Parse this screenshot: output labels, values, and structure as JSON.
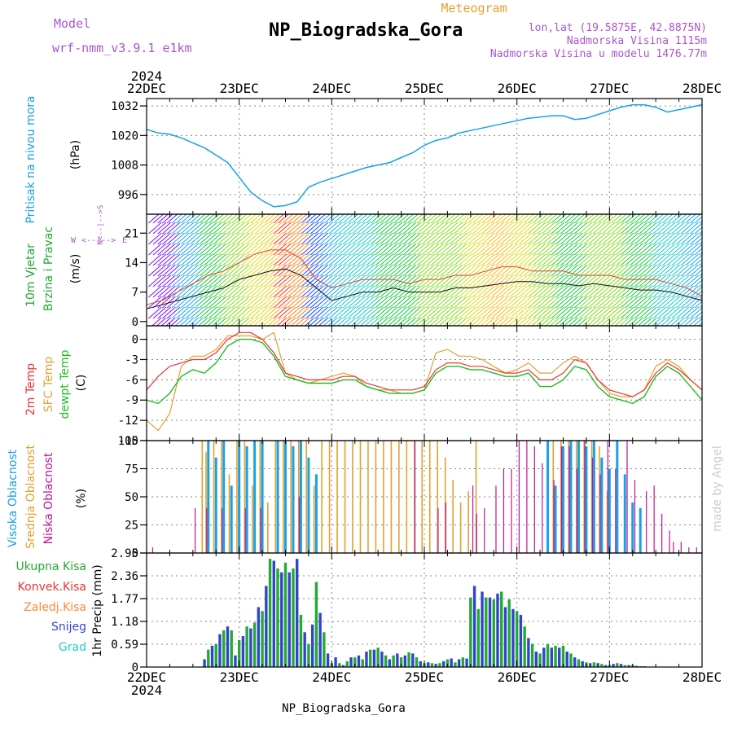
{
  "header": {
    "model_label": "Model",
    "model_name": "wrf-nmm_v3.9.1 e1km",
    "subtitle": "Meteogram",
    "title": "NP_Biogradska_Gora",
    "lonlat": "lon,lat (19.5875E, 42.8875N)",
    "elevation": "Nadmorska Visina 1115m",
    "model_elevation": "Nadmorska Visina u modelu 1476.77m",
    "watermark": "made by Angel",
    "footer": "NP_Biogradska_Gora"
  },
  "time_axis": {
    "year": "2024",
    "ticks": [
      "22DEC",
      "23DEC",
      "24DEC",
      "25DEC",
      "26DEC",
      "27DEC",
      "28DEC"
    ],
    "range_hours": [
      0,
      144
    ]
  },
  "colors": {
    "pressure": "#1ba0e6",
    "temp2m": "#ee3333",
    "sfc_temp": "#e3a12f",
    "dewpoint": "#22bb22",
    "high_cloud": "#1ba0e6",
    "mid_cloud": "#e3a12f",
    "low_cloud": "#c0139a",
    "total_precip": "#22aa33",
    "convective_precip": "#ee3333",
    "freezing_precip": "#ff8833",
    "snow": "#3344cc",
    "graupel": "#22cccc",
    "axis_label_purple": "#aa55cc"
  },
  "chart_data": [
    {
      "type": "line",
      "name": "pressure",
      "ylabel": "Pritisak na nivou mora",
      "unit": "(hPa)",
      "yticks": [
        "1032",
        "1020",
        "1008",
        "996"
      ],
      "ylim": [
        988,
        1035
      ],
      "x": [
        0,
        3,
        6,
        9,
        12,
        15,
        18,
        21,
        24,
        27,
        30,
        33,
        36,
        39,
        42,
        45,
        48,
        51,
        54,
        57,
        60,
        63,
        66,
        69,
        72,
        75,
        78,
        81,
        84,
        87,
        90,
        93,
        96,
        99,
        102,
        105,
        108,
        111,
        114,
        117,
        120,
        123,
        126,
        129,
        132,
        135,
        138,
        141,
        144
      ],
      "series": [
        {
          "values": [
            1022.5,
            1021,
            1020.5,
            1019,
            1017,
            1015,
            1012,
            1009,
            1003,
            997,
            993.5,
            991,
            991.5,
            993,
            999,
            1001,
            1002.5,
            1004,
            1005.5,
            1007,
            1008,
            1009,
            1011,
            1013,
            1016,
            1018,
            1019,
            1021,
            1022,
            1023,
            1024,
            1025,
            1026,
            1027,
            1027.5,
            1028,
            1028,
            1026.5,
            1027,
            1028.5,
            1030,
            1031.5,
            1032.5,
            1032.5,
            1031.5,
            1029.5,
            1030.5,
            1031.5,
            1032.5
          ]
        }
      ]
    },
    {
      "type": "line",
      "name": "wind",
      "ylabel": "10m Vjetar Brzina i Pravac",
      "unit": "(m/s)",
      "direction_legend": [
        "W",
        "E",
        "N",
        "S"
      ],
      "direction_legend_text": "<--|-->",
      "yticks": [
        "21",
        "14",
        "7",
        "0"
      ],
      "ylim": [
        -1,
        25.5
      ],
      "x": [
        0,
        4,
        8,
        12,
        16,
        20,
        24,
        28,
        32,
        36,
        40,
        44,
        48,
        52,
        56,
        60,
        64,
        68,
        72,
        76,
        80,
        84,
        88,
        92,
        96,
        100,
        104,
        108,
        112,
        116,
        120,
        124,
        128,
        132,
        136,
        140,
        144
      ],
      "series": [
        {
          "name": "speed",
          "values": [
            3,
            4,
            5,
            6,
            7,
            8,
            10,
            11,
            12,
            12.5,
            11,
            8,
            5,
            6,
            7,
            7,
            8,
            7,
            7,
            7,
            8,
            8,
            8.5,
            9,
            9.5,
            9.5,
            9,
            9,
            8.5,
            9,
            8.5,
            8,
            7.5,
            7.5,
            7,
            6,
            5
          ]
        },
        {
          "name": "gust",
          "values": [
            4,
            5,
            7,
            9,
            11,
            12,
            14,
            16,
            17,
            17,
            15,
            10,
            8,
            9,
            10,
            10,
            10,
            9,
            10,
            10,
            11,
            11,
            12,
            13,
            13,
            12,
            12,
            12,
            11,
            11,
            11,
            10,
            10,
            10,
            9,
            8,
            6
          ]
        }
      ],
      "barb_colors": [
        "#7a1aff",
        "#2255ff",
        "#22aaee",
        "#22cccc",
        "#22cc44",
        "#88dd22",
        "#dddd22",
        "#ffbb22",
        "#ff8822",
        "#ff3322"
      ]
    },
    {
      "type": "line",
      "name": "temperature",
      "ylabel": [
        "2m Temp",
        "SFC Temp",
        "dewpt Temp"
      ],
      "unit": "(C)",
      "yticks": [
        "0",
        "-3",
        "-6",
        "-9",
        "-12",
        "-15"
      ],
      "ylim": [
        -15,
        2
      ],
      "x": [
        0,
        3,
        6,
        9,
        12,
        15,
        18,
        21,
        24,
        27,
        30,
        33,
        36,
        39,
        42,
        45,
        48,
        51,
        54,
        57,
        60,
        63,
        66,
        69,
        72,
        75,
        78,
        81,
        84,
        87,
        90,
        93,
        96,
        99,
        102,
        105,
        108,
        111,
        114,
        117,
        120,
        123,
        126,
        129,
        132,
        135,
        138,
        141,
        144
      ],
      "series": [
        {
          "name": "2m Temp",
          "values": [
            -7.5,
            -5.5,
            -4,
            -3.5,
            -3,
            -3,
            -2,
            0,
            1,
            1,
            0,
            -2,
            -5,
            -5.5,
            -6,
            -6,
            -6,
            -5.5,
            -5.5,
            -6.5,
            -7,
            -7.5,
            -7.5,
            -7.5,
            -7,
            -4.5,
            -3.5,
            -3.5,
            -4,
            -4,
            -4.5,
            -5,
            -5,
            -4.5,
            -6,
            -6,
            -5,
            -3,
            -3.5,
            -6,
            -7.5,
            -8,
            -8.5,
            -7.5,
            -5,
            -3.5,
            -4.5,
            -6,
            -7.5
          ]
        },
        {
          "name": "SFC Temp",
          "values": [
            -12,
            -13.5,
            -11,
            -4,
            -2.5,
            -2.5,
            -1.5,
            0.5,
            0.5,
            0.5,
            0,
            1,
            -5,
            -6,
            -6.5,
            -6,
            -5.5,
            -5,
            -5.5,
            -7,
            -7.5,
            -7.5,
            -8,
            -8,
            -7.5,
            -2,
            -1.5,
            -2.5,
            -2.5,
            -3,
            -4,
            -5,
            -4.5,
            -3.5,
            -5,
            -5,
            -3.5,
            -2.5,
            -3.5,
            -6,
            -8,
            -8.5,
            -8.5,
            -7.5,
            -4,
            -3,
            -4,
            -6,
            -7.5
          ]
        },
        {
          "name": "dewpt Temp",
          "values": [
            -9,
            -9.5,
            -8,
            -5.5,
            -4.5,
            -5,
            -3.5,
            -1,
            0,
            0,
            -0.5,
            -2.5,
            -5.5,
            -6,
            -6.5,
            -6.5,
            -6.5,
            -6,
            -6,
            -7,
            -7.5,
            -8,
            -8,
            -8,
            -7.5,
            -5,
            -4,
            -4,
            -4.5,
            -4.5,
            -5,
            -5.5,
            -5.5,
            -5,
            -7,
            -7,
            -6,
            -4,
            -4.5,
            -7,
            -8.5,
            -9,
            -9.5,
            -8.5,
            -5.5,
            -4,
            -5,
            -7,
            -9
          ]
        }
      ]
    },
    {
      "type": "bar",
      "name": "cloud",
      "ylabel": [
        "Visoka Oblacnost",
        "Srednja Oblacnost",
        "Niska Oblacnost"
      ],
      "unit": "(%)",
      "yticks": [
        "100",
        "75",
        "50",
        "25",
        "0"
      ],
      "ylim": [
        0,
        100
      ],
      "series": [
        {
          "name": "Visoka Oblacnost",
          "values": {
            "16": 100,
            "18": 85,
            "20": 100,
            "22": 60,
            "24": 100,
            "26": 95,
            "28": 100,
            "30": 100,
            "34": 100,
            "36": 100,
            "38": 95,
            "40": 100,
            "42": 85,
            "44": 70,
            "104": 100,
            "106": 60,
            "108": 95,
            "110": 100,
            "112": 100,
            "114": 95,
            "116": 100,
            "118": 85,
            "120": 75,
            "122": 100,
            "124": 70,
            "126": 45,
            "128": 40
          }
        },
        {
          "name": "Srednja Oblacnost",
          "values": {
            "14": 100,
            "15": 90,
            "17": 100,
            "19": 100,
            "21": 70,
            "23": 100,
            "25": 100,
            "27": 60,
            "29": 100,
            "31": 45,
            "33": 100,
            "35": 100,
            "37": 100,
            "39": 100,
            "41": 100,
            "43": 60,
            "45": 100,
            "47": 100,
            "49": 100,
            "51": 100,
            "53": 100,
            "55": 100,
            "57": 100,
            "59": 100,
            "61": 100,
            "63": 100,
            "65": 100,
            "67": 100,
            "69": 100,
            "71": 100,
            "73": 100,
            "75": 100,
            "77": 85,
            "79": 65,
            "81": 45,
            "83": 55,
            "85": 100,
            "105": 100,
            "107": 100,
            "109": 100,
            "111": 100,
            "113": 100,
            "115": 100,
            "117": 95,
            "119": 55
          }
        },
        {
          "name": "Niska Oblacnost",
          "values": {
            "2": 5,
            "13": 40,
            "16": 40,
            "20": 40,
            "26": 40,
            "30": 40,
            "40": 50,
            "70": 100,
            "76": 40,
            "78": 45,
            "85": 60,
            "86": 35,
            "88": 40,
            "91": 60,
            "93": 75,
            "95": 75,
            "97": 100,
            "99": 100,
            "101": 95,
            "103": 80,
            "106": 65,
            "108": 95,
            "110": 95,
            "112": 75,
            "114": 100,
            "116": 85,
            "118": 70,
            "120": 100,
            "122": 75,
            "125": 100,
            "127": 65,
            "130": 55,
            "132": 60,
            "134": 35,
            "136": 20,
            "137": 10,
            "139": 10,
            "141": 5,
            "143": 5
          }
        }
      ]
    },
    {
      "type": "bar",
      "name": "precipitation",
      "ylabel": "1hr Precip",
      "unit": "(mm)",
      "legend": [
        "Ukupna Kisa",
        "Konvek.Kisa",
        "Zaledj.Kisa",
        "Snijeg",
        "Grad"
      ],
      "yticks": [
        "2.95",
        "2.36",
        "1.77",
        "1.18",
        "0.59",
        "0"
      ],
      "ylim": [
        0,
        2.95
      ],
      "values": {
        "15": 0.2,
        "16": 0.45,
        "17": 0.55,
        "18": 0.6,
        "19": 0.85,
        "20": 0.95,
        "21": 1.05,
        "22": 0.95,
        "23": 0.3,
        "24": 0.7,
        "25": 0.8,
        "26": 1.05,
        "27": 1.0,
        "28": 1.15,
        "29": 1.55,
        "30": 1.45,
        "31": 2.1,
        "32": 2.8,
        "33": 2.75,
        "34": 2.55,
        "35": 2.45,
        "36": 2.7,
        "37": 2.45,
        "38": 2.55,
        "39": 2.8,
        "40": 1.35,
        "41": 0.9,
        "42": 0.6,
        "43": 1.1,
        "44": 2.2,
        "45": 1.4,
        "46": 0.9,
        "47": 0.35,
        "48": 0.1,
        "49": 0.25,
        "50": 0.1,
        "51": 0.05,
        "52": 0.15,
        "53": 0.25,
        "54": 0.25,
        "55": 0.3,
        "56": 0.2,
        "57": 0.4,
        "58": 0.45,
        "59": 0.45,
        "60": 0.5,
        "61": 0.4,
        "62": 0.3,
        "63": 0.2,
        "64": 0.3,
        "65": 0.35,
        "66": 0.25,
        "67": 0.3,
        "68": 0.38,
        "69": 0.35,
        "70": 0.25,
        "71": 0.15,
        "72": 0.1,
        "73": 0.12,
        "74": 0.1,
        "75": 0.08,
        "76": 0.1,
        "77": 0.15,
        "78": 0.2,
        "79": 0.22,
        "80": 0.12,
        "81": 0.2,
        "82": 0.25,
        "83": 0.22,
        "84": 1.8,
        "85": 2.1,
        "86": 1.5,
        "87": 1.95,
        "88": 1.8,
        "89": 1.8,
        "90": 1.75,
        "91": 1.9,
        "92": 1.95,
        "93": 1.55,
        "94": 1.75,
        "95": 1.5,
        "96": 1.45,
        "97": 1.35,
        "98": 1.05,
        "99": 0.75,
        "100": 0.6,
        "101": 0.4,
        "102": 0.35,
        "103": 0.5,
        "104": 0.6,
        "105": 0.5,
        "106": 0.55,
        "107": 0.5,
        "108": 0.55,
        "109": 0.4,
        "110": 0.35,
        "111": 0.25,
        "112": 0.2,
        "113": 0.15,
        "114": 0.12,
        "115": 0.1,
        "116": 0.12,
        "117": 0.1,
        "118": 0.08,
        "119": 0.05,
        "120": 0.05,
        "121": 0.08,
        "122": 0.1,
        "123": 0.08,
        "124": 0.05,
        "125": 0.05,
        "126": 0.05,
        "127": 0.03,
        "128": 0.02,
        "129": 0.02,
        "130": 0.01
      }
    }
  ]
}
